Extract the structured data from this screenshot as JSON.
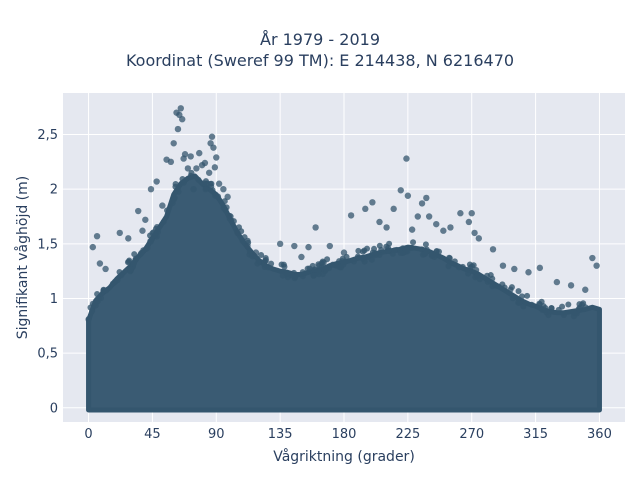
{
  "chart_data": {
    "type": "scatter",
    "title": "År 1979 - 2019",
    "subtitle": "Koordinat (Sweref 99 TM): E 214438, N 6216470",
    "xlabel": "Vågriktning (grader)",
    "ylabel": "Signifikant våghöjd (m)",
    "xlim": [
      -18,
      378
    ],
    "ylim": [
      -0.13,
      2.88
    ],
    "x_ticks": [
      0,
      45,
      90,
      135,
      180,
      225,
      270,
      315,
      360
    ],
    "x_tick_labels": [
      "0",
      "45",
      "90",
      "135",
      "180",
      "225",
      "270",
      "315",
      "360"
    ],
    "y_ticks": [
      0,
      0.5,
      1,
      1.5,
      2,
      2.5
    ],
    "y_tick_labels": [
      "0",
      "0,5",
      "1",
      "1,5",
      "2",
      "2,5"
    ],
    "grid": true,
    "legend": "none",
    "marker_color": "#34566e",
    "background_color": "#e5e8f0",
    "envelope": {
      "x": [
        0,
        5,
        10,
        15,
        20,
        25,
        30,
        35,
        40,
        45,
        50,
        55,
        60,
        65,
        70,
        75,
        80,
        85,
        90,
        95,
        100,
        105,
        110,
        115,
        120,
        125,
        130,
        135,
        140,
        145,
        150,
        155,
        160,
        165,
        170,
        175,
        180,
        185,
        190,
        195,
        200,
        205,
        210,
        215,
        220,
        225,
        230,
        235,
        240,
        245,
        250,
        255,
        260,
        265,
        270,
        275,
        280,
        285,
        290,
        295,
        300,
        305,
        310,
        315,
        320,
        325,
        330,
        335,
        340,
        345,
        350,
        355,
        360
      ],
      "max_height": [
        0.8,
        0.98,
        1.05,
        1.1,
        1.18,
        1.24,
        1.3,
        1.38,
        1.45,
        1.55,
        1.65,
        1.75,
        1.95,
        2.05,
        2.1,
        2.12,
        2.05,
        2.0,
        1.95,
        1.85,
        1.72,
        1.6,
        1.5,
        1.42,
        1.35,
        1.3,
        1.27,
        1.25,
        1.24,
        1.22,
        1.22,
        1.24,
        1.25,
        1.27,
        1.3,
        1.32,
        1.33,
        1.35,
        1.37,
        1.38,
        1.4,
        1.42,
        1.43,
        1.44,
        1.45,
        1.47,
        1.46,
        1.45,
        1.43,
        1.4,
        1.37,
        1.33,
        1.3,
        1.27,
        1.25,
        1.22,
        1.18,
        1.14,
        1.1,
        1.06,
        1.02,
        0.98,
        0.95,
        0.93,
        0.9,
        0.88,
        0.87,
        0.87,
        0.88,
        0.89,
        0.9,
        0.92,
        0.9
      ]
    },
    "outliers": {
      "x": [
        3,
        6,
        8,
        12,
        22,
        28,
        35,
        38,
        40,
        44,
        48,
        52,
        55,
        58,
        60,
        62,
        63,
        64,
        65,
        66,
        67,
        68,
        70,
        72,
        74,
        76,
        78,
        80,
        82,
        85,
        86,
        87,
        88,
        89,
        90,
        92,
        95,
        98,
        100,
        105,
        112,
        118,
        125,
        135,
        145,
        150,
        155,
        160,
        170,
        180,
        185,
        195,
        200,
        205,
        210,
        215,
        220,
        224,
        225,
        228,
        232,
        235,
        238,
        240,
        245,
        250,
        255,
        262,
        268,
        270,
        272,
        275,
        285,
        292,
        300,
        310,
        318,
        330,
        340,
        350,
        355,
        358
      ],
      "y": [
        1.47,
        1.57,
        1.32,
        1.27,
        1.6,
        1.55,
        1.8,
        1.62,
        1.72,
        2.0,
        2.07,
        1.85,
        2.27,
        2.25,
        2.42,
        2.7,
        2.55,
        2.68,
        2.74,
        2.64,
        2.28,
        2.32,
        2.19,
        2.3,
        2.0,
        2.19,
        2.33,
        2.22,
        2.24,
        2.15,
        2.42,
        2.48,
        2.38,
        2.2,
        2.29,
        2.05,
        2.0,
        1.93,
        1.75,
        1.6,
        1.48,
        1.42,
        1.35,
        1.5,
        1.48,
        1.38,
        1.47,
        1.65,
        1.48,
        1.42,
        1.76,
        1.82,
        1.88,
        1.7,
        1.65,
        1.82,
        1.99,
        2.28,
        1.94,
        1.63,
        1.75,
        1.87,
        1.92,
        1.75,
        1.68,
        1.62,
        1.65,
        1.78,
        1.7,
        1.78,
        1.6,
        1.55,
        1.45,
        1.3,
        1.27,
        1.24,
        1.28,
        1.15,
        1.12,
        1.08,
        1.37,
        1.3
      ]
    }
  }
}
